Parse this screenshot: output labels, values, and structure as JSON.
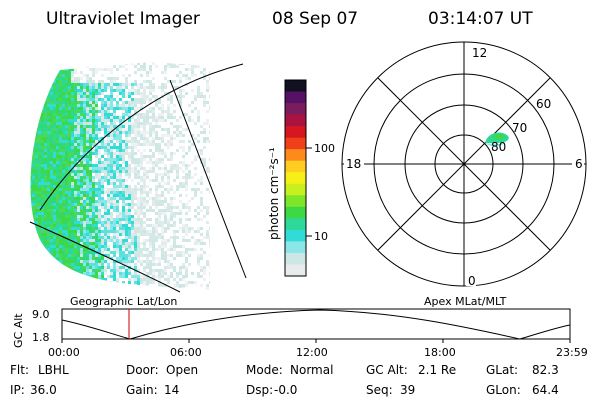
{
  "header": {
    "instrument": "Ultraviolet Imager",
    "date": "08 Sep 07",
    "time": "03:14:07 UT"
  },
  "colorbar": {
    "unit_label": "photon cm⁻²s⁻¹",
    "ticks": [
      "100",
      "10"
    ],
    "colors": [
      "#111122",
      "#551166",
      "#7a1d5e",
      "#aa1340",
      "#d61620",
      "#f0401a",
      "#ff8a1c",
      "#ffcc22",
      "#f7f018",
      "#c8f01e",
      "#7de629",
      "#3cd845",
      "#2cd999",
      "#31dcd6",
      "#8be6e8",
      "#cde6e6",
      "#e8ecec"
    ]
  },
  "polar": {
    "labels": {
      "noon": "12",
      "midnight": "0",
      "dusk": "18",
      "dawn": "6",
      "lat60": "60",
      "lat70": "70",
      "lat80": "80"
    }
  },
  "timeline": {
    "left_label": "Geographic Lat/Lon",
    "right_label": "Apex MLat/MLT",
    "axis_title": "GC Alt",
    "y_ticks": [
      "9.0",
      "1.8"
    ],
    "x_ticks": [
      "00:00",
      "06:00",
      "12:00",
      "18:00",
      "23:59"
    ],
    "marker_color": "#cc0000"
  },
  "info": {
    "row1": [
      {
        "key": "Flt:",
        "value": "LBHL"
      },
      {
        "key": "Door:",
        "value": "Open"
      },
      {
        "key": "Mode:",
        "value": "Normal"
      },
      {
        "key": "GC Alt:",
        "value": "2.1 Re"
      },
      {
        "key": "GLat:",
        "value": "82.3"
      }
    ],
    "row2": [
      {
        "key": "IP:",
        "value": "36.0"
      },
      {
        "key": "Gain:",
        "value": "14"
      },
      {
        "key": "Dsp:",
        "value": "-0.0"
      },
      {
        "key": "Seq:",
        "value": "39"
      },
      {
        "key": "GLon:",
        "value": "64.4"
      }
    ]
  }
}
